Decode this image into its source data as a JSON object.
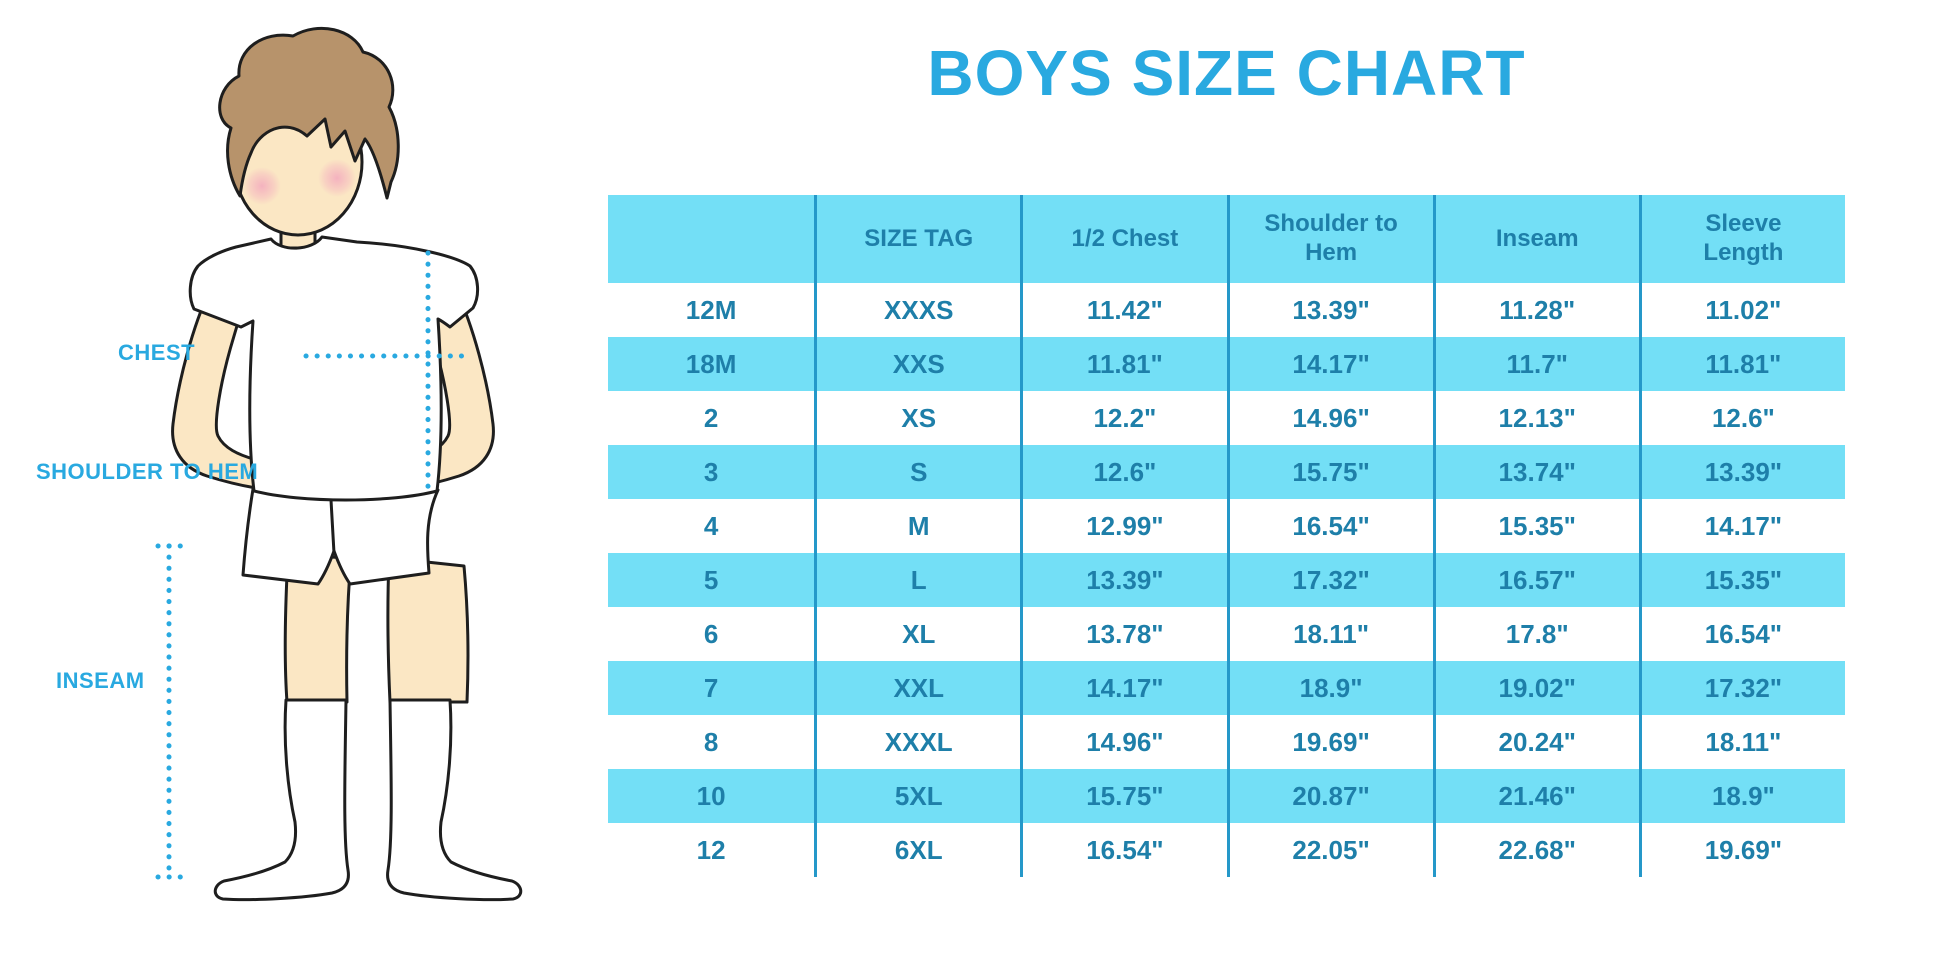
{
  "title": "BOYS SIZE CHART",
  "figure": {
    "labels": {
      "chest": "CHEST",
      "shoulder_to_hem": "SHOULDER TO HEM",
      "inseam": "INSEAM"
    }
  },
  "chart_data": {
    "type": "table",
    "title": "BOYS SIZE CHART",
    "columns": [
      "",
      "SIZE TAG",
      "1/2 Chest",
      "Shoulder to Hem",
      "Inseam",
      "Sleeve Length"
    ],
    "rows": [
      [
        "12M",
        "XXXS",
        "11.42\"",
        "13.39\"",
        "11.28\"",
        "11.02\""
      ],
      [
        "18M",
        "XXS",
        "11.81\"",
        "14.17\"",
        "11.7\"",
        "11.81\""
      ],
      [
        "2",
        "XS",
        "12.2\"",
        "14.96\"",
        "12.13\"",
        "12.6\""
      ],
      [
        "3",
        "S",
        "12.6\"",
        "15.75\"",
        "13.74\"",
        "13.39\""
      ],
      [
        "4",
        "M",
        "12.99\"",
        "16.54\"",
        "15.35\"",
        "14.17\""
      ],
      [
        "5",
        "L",
        "13.39\"",
        "17.32\"",
        "16.57\"",
        "15.35\""
      ],
      [
        "6",
        "XL",
        "13.78\"",
        "18.11\"",
        "17.8\"",
        "16.54\""
      ],
      [
        "7",
        "XXL",
        "14.17\"",
        "18.9\"",
        "19.02\"",
        "17.32\""
      ],
      [
        "8",
        "XXXL",
        "14.96\"",
        "19.69\"",
        "20.24\"",
        "18.11\""
      ],
      [
        "10",
        "5XL",
        "15.75\"",
        "20.87\"",
        "21.46\"",
        "18.9\""
      ],
      [
        "12",
        "6XL",
        "16.54\"",
        "22.05\"",
        "22.68\"",
        "19.69\""
      ]
    ],
    "layout_hints": {
      "header_background": "cyan",
      "row_striping": "odd data rows cyan, even data rows white",
      "gridlines": "vertical column dividers only"
    }
  },
  "colors": {
    "accent": "#29A9E0",
    "stripe": "#73DFF6",
    "table_text": "#1E7FA9",
    "divider": "#2598C9",
    "skin": "#FBE7C4",
    "hair": "#B7936B",
    "blush": "#F3A9BE",
    "outline": "#1E1E1E"
  }
}
